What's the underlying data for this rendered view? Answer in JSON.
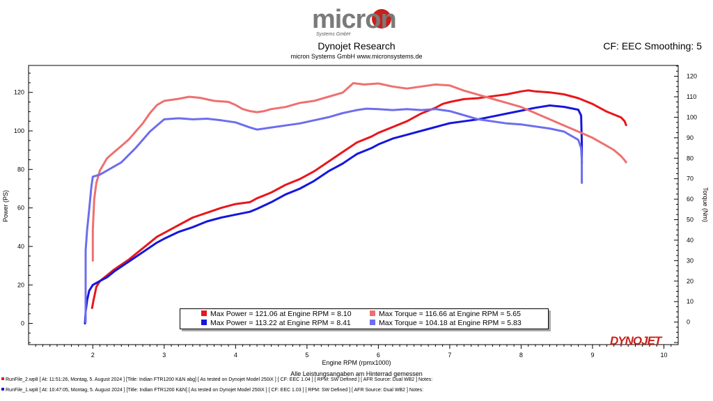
{
  "header": {
    "logo_text": "micron",
    "logo_subtext": "Systems GmbH",
    "title": "Dynojet Research",
    "company_line": "micron Systems GmbH  www.micronsystems.de",
    "smoothing": "CF: EEC Smoothing: 5"
  },
  "colors": {
    "power_run2": "#e8161c",
    "power_run1": "#1616dc",
    "torque_run2": "#ef6f6f",
    "torque_run1": "#6d6dee",
    "dynojet_brand": "#c8201a"
  },
  "chart_data": {
    "type": "line",
    "xlabel": "Engine RPM (rpmx1000)",
    "ylabel": "Power (PS)",
    "y2label": "Torque (Nm)",
    "xlim": [
      1.1,
      10.2
    ],
    "ylim": [
      -11,
      134
    ],
    "y2lim": [
      -11,
      125.3
    ],
    "x_ticks": [
      2,
      3,
      4,
      5,
      6,
      7,
      8,
      9,
      10
    ],
    "y_ticks": [
      0,
      20,
      40,
      60,
      80,
      100,
      120
    ],
    "y2_ticks": [
      0,
      10,
      20,
      30,
      40,
      50,
      60,
      70,
      80,
      90,
      100,
      110,
      120
    ],
    "grid": false,
    "legend_position": "bottom-center",
    "series": [
      {
        "name": "Max Power = 121.06 at Engine RPM = 8.10",
        "axis": "left",
        "color": "#e8161c",
        "x": [
          1.99,
          2.01,
          2.05,
          2.1,
          2.2,
          2.3,
          2.5,
          2.7,
          2.9,
          3.0,
          3.2,
          3.4,
          3.6,
          3.8,
          4.0,
          4.2,
          4.3,
          4.5,
          4.7,
          4.9,
          5.1,
          5.3,
          5.5,
          5.7,
          5.9,
          6.0,
          6.2,
          6.4,
          6.6,
          6.8,
          6.9,
          7.0,
          7.2,
          7.4,
          7.6,
          7.8,
          8.0,
          8.1,
          8.2,
          8.4,
          8.6,
          8.8,
          9.0,
          9.2,
          9.3,
          9.4,
          9.45,
          9.47
        ],
        "y": [
          8,
          12,
          19,
          22,
          25,
          28,
          33,
          39,
          45,
          47,
          51,
          55,
          57.5,
          60,
          62,
          63,
          65,
          68,
          72,
          75,
          79,
          84,
          89,
          94,
          97,
          99,
          102,
          105,
          109,
          112,
          114,
          115,
          116.5,
          117,
          118,
          119,
          120.5,
          121.06,
          120.5,
          120,
          119,
          117,
          114,
          110,
          108.5,
          107,
          105,
          103
        ]
      },
      {
        "name": "Max Power = 113.22 at Engine RPM = 8.41",
        "axis": "left",
        "color": "#1616dc",
        "x": [
          1.89,
          1.9,
          1.92,
          1.95,
          2.0,
          2.05,
          2.1,
          2.2,
          2.3,
          2.5,
          2.7,
          2.9,
          3.0,
          3.2,
          3.4,
          3.6,
          3.8,
          4.0,
          4.2,
          4.3,
          4.5,
          4.7,
          4.9,
          5.1,
          5.3,
          5.5,
          5.7,
          5.9,
          6.0,
          6.2,
          6.4,
          6.6,
          6.8,
          6.9,
          7.0,
          7.2,
          7.4,
          7.6,
          7.8,
          8.0,
          8.2,
          8.4,
          8.6,
          8.8,
          8.84,
          8.85,
          8.85
        ],
        "y": [
          0,
          6,
          12,
          17,
          20,
          21,
          22,
          24,
          27,
          32,
          37,
          42,
          44,
          47.5,
          50,
          53,
          55,
          56.5,
          58,
          59.5,
          63,
          67,
          70,
          74,
          79,
          83,
          88,
          91,
          93,
          96,
          98,
          100,
          102,
          103,
          104,
          105,
          106,
          107.5,
          109,
          110.5,
          112,
          113.22,
          112.5,
          111,
          108,
          94,
          83
        ]
      },
      {
        "name": "Max Torque = 116.66 at Engine RPM = 5.65",
        "axis": "right",
        "color": "#ef6f6f",
        "x": [
          2.0,
          2.0,
          2.02,
          2.05,
          2.1,
          2.2,
          2.3,
          2.4,
          2.5,
          2.6,
          2.7,
          2.8,
          2.9,
          3.0,
          3.2,
          3.35,
          3.5,
          3.7,
          3.9,
          4.0,
          4.1,
          4.2,
          4.3,
          4.4,
          4.5,
          4.7,
          4.9,
          5.0,
          5.1,
          5.3,
          5.5,
          5.65,
          5.8,
          6.0,
          6.2,
          6.4,
          6.6,
          6.8,
          7.0,
          7.2,
          7.4,
          7.6,
          7.8,
          8.0,
          8.2,
          8.4,
          8.6,
          8.8,
          9.0,
          9.2,
          9.3,
          9.4,
          9.45,
          9.47
        ],
        "y": [
          30,
          45,
          60,
          68,
          74,
          80,
          83,
          86,
          89,
          93,
          97,
          102,
          106,
          108,
          109,
          110,
          109.5,
          108,
          107.5,
          106,
          104,
          103,
          102.5,
          103,
          104,
          105,
          107,
          107.5,
          108,
          110,
          112,
          116.66,
          116,
          116.5,
          115,
          114,
          115,
          116,
          115.5,
          113,
          111,
          109,
          107,
          105,
          102,
          99,
          96,
          93,
          90,
          86,
          84,
          81,
          79,
          78
        ]
      },
      {
        "name": "Max Torque = 104.18 at Engine RPM = 5.83",
        "axis": "right",
        "color": "#6d6dee",
        "x": [
          1.9,
          1.9,
          1.92,
          1.95,
          1.98,
          2.0,
          2.05,
          2.1,
          2.2,
          2.4,
          2.6,
          2.8,
          3.0,
          3.2,
          3.4,
          3.6,
          3.8,
          4.0,
          4.2,
          4.3,
          4.5,
          4.7,
          4.9,
          5.1,
          5.3,
          5.5,
          5.7,
          5.83,
          6.0,
          6.2,
          6.4,
          6.6,
          6.8,
          7.0,
          7.2,
          7.4,
          7.6,
          7.8,
          8.0,
          8.2,
          8.4,
          8.6,
          8.7,
          8.8,
          8.84,
          8.85,
          8.85
        ],
        "y": [
          0,
          35,
          45,
          55,
          66,
          71,
          71.5,
          72,
          74,
          78,
          85,
          93,
          99,
          99.5,
          99,
          99.3,
          98.5,
          97.5,
          95,
          94,
          95,
          96,
          97,
          98.5,
          100,
          102,
          103.5,
          104.18,
          104,
          103.5,
          104,
          103.5,
          104,
          103,
          101,
          99,
          98,
          97,
          96.5,
          95.5,
          94.5,
          93,
          91,
          89,
          85,
          79,
          68
        ]
      }
    ]
  },
  "legend": {
    "power_run2": "Max Power = 121.06 at Engine RPM = 8.10",
    "power_run1": "Max Power = 113.22 at Engine RPM = 8.41",
    "torque_run2": "Max Torque = 116.66 at Engine RPM = 5.65",
    "torque_run1": "Max Torque = 104.18 at Engine RPM = 5.83"
  },
  "axes": {
    "x_label": "Engine RPM (rpmx1000)",
    "y_left_label": "Power (PS)",
    "y_right_label": "Torque (Nm)"
  },
  "footnote": "Alle Leistungsangaben am Hinterrad gemessen",
  "runs": {
    "run2": "RunFile_2.wp8  [ At:  11:51:26, Montag, 5. August 2024 ] [Title: Indian FTR1200 K&N abg]  [ As tested on Dynojet Model 250iX ] [ CF: EEC 1.04 ] [ RPM: SW Defined ] [ AFR Source: Dual WB2 ] Notes:",
    "run1": "RunFile_1.wp8  [ At:  10:47:05, Montag, 5. August 2024 ] [Title: Indian FTR1200 K&N]  [ As tested on Dynojet Model 250iX ] [ CF: EEC 1.03 ] [ RPM: SW Defined ] [ AFR Source: Dual WB2 ] Notes:"
  },
  "brand": "DYNOJET"
}
